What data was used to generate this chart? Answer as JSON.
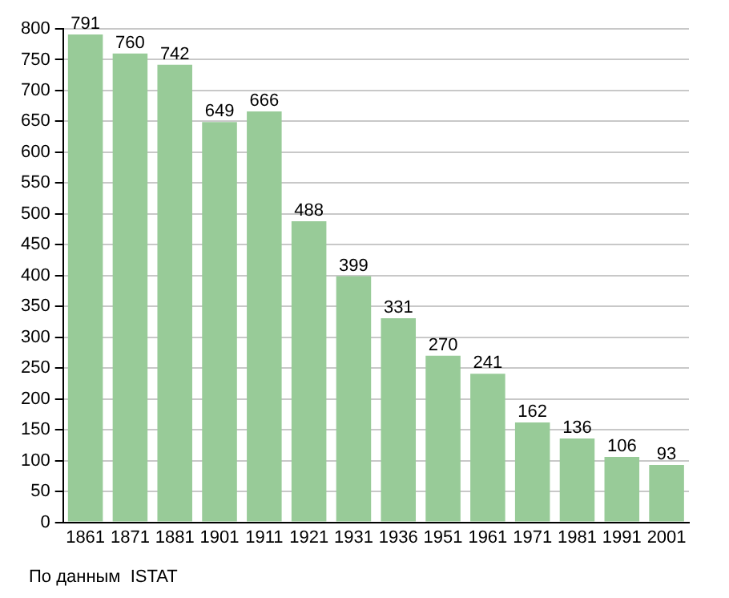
{
  "chart_data": {
    "type": "bar",
    "categories": [
      "1861",
      "1871",
      "1881",
      "1901",
      "1911",
      "1921",
      "1931",
      "1936",
      "1951",
      "1961",
      "1971",
      "1981",
      "1991",
      "2001"
    ],
    "values": [
      791,
      760,
      742,
      649,
      666,
      488,
      399,
      331,
      270,
      241,
      162,
      136,
      106,
      93
    ],
    "color": "#98cb98",
    "ylim": [
      0,
      800
    ],
    "yticks": [
      0,
      50,
      100,
      150,
      200,
      250,
      300,
      350,
      400,
      450,
      500,
      550,
      600,
      650,
      700,
      750,
      800
    ],
    "grid": "y",
    "legend": false,
    "data_labels": true,
    "annotations": [
      "По данным  ISTAT"
    ]
  }
}
